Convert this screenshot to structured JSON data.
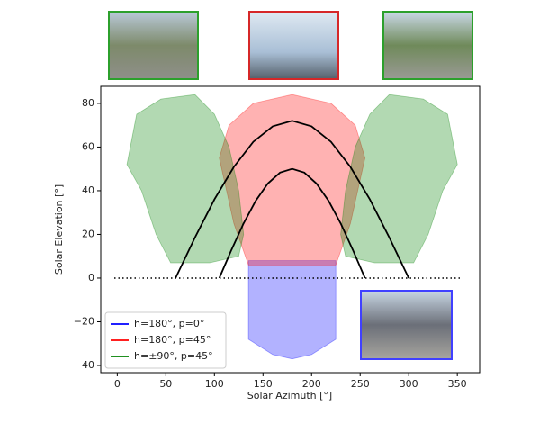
{
  "chart_data": {
    "type": "area",
    "xlabel": "Solar Azimuth [°]",
    "ylabel": "Solar Elevation [°]",
    "xlim": [
      -17,
      373
    ],
    "ylim": [
      -43.3,
      87.8
    ],
    "xticks": [
      0,
      50,
      100,
      150,
      200,
      250,
      300,
      350
    ],
    "yticks": [
      {
        "value": -40,
        "label": "−40"
      },
      {
        "value": -20,
        "label": "−20"
      },
      0,
      20,
      40,
      60,
      80
    ],
    "hline": 0,
    "legend": "lower left",
    "series": [
      {
        "name": "h=180°, p=0°",
        "color": "#0000ff",
        "type": "area",
        "x": [
          135,
          225,
          225,
          200,
          180,
          160,
          135
        ],
        "values": [
          8,
          8,
          -28,
          -35,
          -37,
          -35,
          -28
        ]
      },
      {
        "name": "h=180°, p=45°",
        "color": "#ff0000",
        "type": "area",
        "x": [
          135,
          120,
          110,
          105,
          115,
          140,
          180,
          220,
          245,
          255,
          250,
          240,
          225
        ],
        "values": [
          6,
          25,
          45,
          55,
          70,
          80,
          84,
          80,
          70,
          55,
          45,
          25,
          6
        ]
      },
      {
        "name": "h=±90°, p=45°",
        "color": "#008000",
        "type": "area",
        "x": [
          10,
          20,
          45,
          80,
          100,
          115,
          125,
          130,
          125,
          95,
          55,
          40,
          25,
          null,
          350,
          340,
          315,
          280,
          260,
          245,
          235,
          230,
          235,
          265,
          305,
          320,
          335
        ],
        "values": [
          52,
          75,
          82,
          84,
          75,
          60,
          40,
          20,
          10,
          7,
          7,
          20,
          40,
          null,
          52,
          75,
          82,
          84,
          75,
          60,
          40,
          20,
          10,
          7,
          7,
          20,
          40
        ]
      },
      {
        "color": "#000000",
        "type": "line",
        "x": [
          60,
          80,
          100,
          120,
          140,
          160,
          180,
          200,
          220,
          240,
          260,
          280,
          300
        ],
        "values": [
          0,
          18.6,
          36,
          50.9,
          62.4,
          69.5,
          72,
          69.5,
          62.4,
          50.9,
          36,
          18.6,
          0
        ]
      },
      {
        "color": "#000000",
        "type": "line",
        "x": [
          105,
          117.5,
          130,
          142.5,
          155,
          167.5,
          180,
          192.5,
          205,
          217.5,
          230,
          242.5,
          255
        ],
        "values": [
          0,
          12.9,
          25,
          35.4,
          43.3,
          48.3,
          50,
          48.3,
          43.3,
          35.4,
          25,
          12.9,
          0
        ]
      }
    ]
  }
}
